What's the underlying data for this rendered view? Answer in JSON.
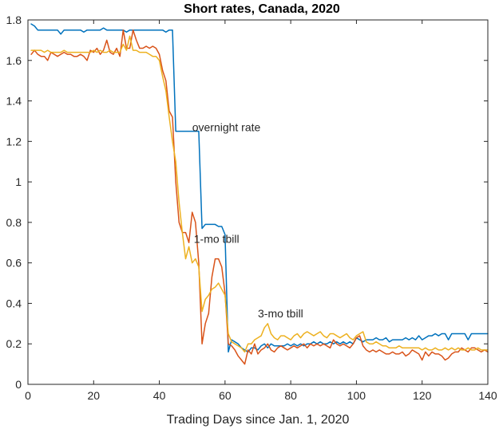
{
  "chart_data": {
    "type": "line",
    "title": "Short rates, Canada, 2020",
    "xlabel": "Trading Days since Jan. 1, 2020",
    "ylabel": "",
    "xlim": [
      0,
      140
    ],
    "ylim": [
      0,
      1.8
    ],
    "xticks": [
      0,
      20,
      40,
      60,
      80,
      100,
      120,
      140
    ],
    "xtick_labels": [
      "0",
      "20",
      "40",
      "60",
      "80",
      "100",
      "120",
      "140"
    ],
    "yticks": [
      0,
      0.2,
      0.4,
      0.6,
      0.8,
      1,
      1.2,
      1.4,
      1.6,
      1.8
    ],
    "ytick_labels": [
      "0",
      "0.2",
      "0.4",
      "0.6",
      "0.8",
      "1",
      "1.2",
      "1.4",
      "1.6",
      "1.8"
    ],
    "grid": false,
    "annotations": [
      {
        "text": "overnight rate",
        "x": 50,
        "y": 1.25
      },
      {
        "text": "1-mo tbill",
        "x": 50.5,
        "y": 0.7
      },
      {
        "text": "3-mo tbill",
        "x": 70,
        "y": 0.33
      }
    ],
    "series": [
      {
        "name": "overnight rate",
        "color": "#0072BD",
        "x": [
          1,
          2,
          3,
          4,
          5,
          6,
          7,
          8,
          9,
          10,
          11,
          12,
          13,
          14,
          15,
          16,
          17,
          18,
          19,
          20,
          21,
          22,
          23,
          24,
          25,
          26,
          27,
          28,
          29,
          30,
          31,
          32,
          33,
          34,
          35,
          36,
          37,
          38,
          39,
          40,
          41,
          42,
          43,
          44,
          45,
          46,
          47,
          48,
          49,
          50,
          51,
          52,
          53,
          54,
          55,
          56,
          57,
          58,
          59,
          60,
          61,
          62,
          63,
          64,
          65,
          66,
          67,
          68,
          69,
          70,
          71,
          72,
          73,
          74,
          75,
          76,
          77,
          78,
          79,
          80,
          81,
          82,
          83,
          84,
          85,
          86,
          87,
          88,
          89,
          90,
          91,
          92,
          93,
          94,
          95,
          96,
          97,
          98,
          99,
          100,
          101,
          102,
          103,
          104,
          105,
          106,
          107,
          108,
          109,
          110,
          111,
          112,
          113,
          114,
          115,
          116,
          117,
          118,
          119,
          120,
          121,
          122,
          123,
          124,
          125,
          126,
          127,
          128,
          129,
          130,
          131,
          132,
          133,
          134,
          135,
          136,
          137,
          138,
          139,
          140
        ],
        "values": [
          1.78,
          1.77,
          1.75,
          1.75,
          1.75,
          1.75,
          1.75,
          1.75,
          1.75,
          1.73,
          1.75,
          1.75,
          1.75,
          1.75,
          1.75,
          1.75,
          1.74,
          1.75,
          1.75,
          1.75,
          1.75,
          1.75,
          1.76,
          1.75,
          1.75,
          1.75,
          1.75,
          1.75,
          1.75,
          1.74,
          1.75,
          1.75,
          1.75,
          1.75,
          1.75,
          1.75,
          1.75,
          1.75,
          1.75,
          1.75,
          1.75,
          1.74,
          1.75,
          1.75,
          1.25,
          1.25,
          1.25,
          1.25,
          1.25,
          1.25,
          1.25,
          1.25,
          0.77,
          0.79,
          0.79,
          0.79,
          0.79,
          0.78,
          0.78,
          0.74,
          0.16,
          0.22,
          0.21,
          0.2,
          0.18,
          0.17,
          0.16,
          0.18,
          0.18,
          0.17,
          0.19,
          0.2,
          0.18,
          0.2,
          0.19,
          0.19,
          0.19,
          0.19,
          0.2,
          0.19,
          0.2,
          0.19,
          0.2,
          0.19,
          0.2,
          0.2,
          0.21,
          0.2,
          0.21,
          0.2,
          0.2,
          0.21,
          0.2,
          0.21,
          0.2,
          0.21,
          0.2,
          0.21,
          0.2,
          0.23,
          0.22,
          0.21,
          0.22,
          0.22,
          0.22,
          0.23,
          0.22,
          0.22,
          0.23,
          0.21,
          0.22,
          0.22,
          0.22,
          0.22,
          0.23,
          0.22,
          0.23,
          0.22,
          0.24,
          0.22,
          0.23,
          0.24,
          0.24,
          0.25,
          0.24,
          0.25,
          0.25,
          0.22,
          0.25,
          0.25,
          0.25,
          0.25,
          0.25,
          0.22,
          0.25,
          0.25,
          0.25,
          0.25,
          0.25,
          0.25
        ]
      },
      {
        "name": "1-mo tbill",
        "color": "#D95319",
        "x": [
          1,
          2,
          3,
          4,
          5,
          6,
          7,
          8,
          9,
          10,
          11,
          12,
          13,
          14,
          15,
          16,
          17,
          18,
          19,
          20,
          21,
          22,
          23,
          24,
          25,
          26,
          27,
          28,
          29,
          30,
          31,
          32,
          33,
          34,
          35,
          36,
          37,
          38,
          39,
          40,
          41,
          42,
          43,
          44,
          45,
          46,
          47,
          48,
          49,
          50,
          51,
          52,
          53,
          54,
          55,
          56,
          57,
          58,
          59,
          60,
          61,
          62,
          63,
          64,
          65,
          66,
          67,
          68,
          69,
          70,
          71,
          72,
          73,
          74,
          75,
          76,
          77,
          78,
          79,
          80,
          81,
          82,
          83,
          84,
          85,
          86,
          87,
          88,
          89,
          90,
          91,
          92,
          93,
          94,
          95,
          96,
          97,
          98,
          99,
          100,
          101,
          102,
          103,
          104,
          105,
          106,
          107,
          108,
          109,
          110,
          111,
          112,
          113,
          114,
          115,
          116,
          117,
          118,
          119,
          120,
          121,
          122,
          123,
          124,
          125,
          126,
          127,
          128,
          129,
          130,
          131,
          132,
          133,
          134,
          135,
          136,
          137,
          138,
          139,
          140
        ],
        "values": [
          1.63,
          1.65,
          1.63,
          1.62,
          1.62,
          1.6,
          1.64,
          1.63,
          1.62,
          1.63,
          1.64,
          1.63,
          1.63,
          1.62,
          1.62,
          1.63,
          1.62,
          1.6,
          1.65,
          1.64,
          1.66,
          1.63,
          1.65,
          1.7,
          1.64,
          1.63,
          1.66,
          1.62,
          1.75,
          1.66,
          1.66,
          1.75,
          1.7,
          1.66,
          1.66,
          1.67,
          1.66,
          1.67,
          1.66,
          1.63,
          1.55,
          1.5,
          1.35,
          1.32,
          1.0,
          0.8,
          0.75,
          0.75,
          0.7,
          0.85,
          0.8,
          0.6,
          0.2,
          0.3,
          0.35,
          0.53,
          0.62,
          0.62,
          0.58,
          0.45,
          0.2,
          0.19,
          0.17,
          0.14,
          0.12,
          0.1,
          0.17,
          0.15,
          0.2,
          0.15,
          0.17,
          0.18,
          0.2,
          0.17,
          0.16,
          0.18,
          0.19,
          0.18,
          0.17,
          0.18,
          0.19,
          0.18,
          0.19,
          0.2,
          0.18,
          0.2,
          0.19,
          0.2,
          0.19,
          0.2,
          0.19,
          0.18,
          0.22,
          0.2,
          0.19,
          0.2,
          0.19,
          0.18,
          0.2,
          0.23,
          0.24,
          0.19,
          0.17,
          0.16,
          0.17,
          0.16,
          0.17,
          0.16,
          0.15,
          0.15,
          0.16,
          0.15,
          0.15,
          0.16,
          0.14,
          0.15,
          0.17,
          0.16,
          0.15,
          0.12,
          0.16,
          0.14,
          0.16,
          0.15,
          0.15,
          0.14,
          0.12,
          0.13,
          0.15,
          0.16,
          0.16,
          0.18,
          0.17,
          0.16,
          0.18,
          0.18,
          0.17,
          0.16,
          0.17,
          0.16
        ]
      },
      {
        "name": "3-mo tbill",
        "color": "#EDB120",
        "x": [
          1,
          2,
          3,
          4,
          5,
          6,
          7,
          8,
          9,
          10,
          11,
          12,
          13,
          14,
          15,
          16,
          17,
          18,
          19,
          20,
          21,
          22,
          23,
          24,
          25,
          26,
          27,
          28,
          29,
          30,
          31,
          32,
          33,
          34,
          35,
          36,
          37,
          38,
          39,
          40,
          41,
          42,
          43,
          44,
          45,
          46,
          47,
          48,
          49,
          50,
          51,
          52,
          53,
          54,
          55,
          56,
          57,
          58,
          59,
          60,
          61,
          62,
          63,
          64,
          65,
          66,
          67,
          68,
          69,
          70,
          71,
          72,
          73,
          74,
          75,
          76,
          77,
          78,
          79,
          80,
          81,
          82,
          83,
          84,
          85,
          86,
          87,
          88,
          89,
          90,
          91,
          92,
          93,
          94,
          95,
          96,
          97,
          98,
          99,
          100,
          101,
          102,
          103,
          104,
          105,
          106,
          107,
          108,
          109,
          110,
          111,
          112,
          113,
          114,
          115,
          116,
          117,
          118,
          119,
          120,
          121,
          122,
          123,
          124,
          125,
          126,
          127,
          128,
          129,
          130,
          131,
          132,
          133,
          134,
          135,
          136,
          137,
          138,
          139,
          140
        ],
        "values": [
          1.65,
          1.65,
          1.65,
          1.65,
          1.64,
          1.65,
          1.64,
          1.64,
          1.64,
          1.64,
          1.65,
          1.64,
          1.64,
          1.64,
          1.64,
          1.64,
          1.64,
          1.64,
          1.64,
          1.65,
          1.64,
          1.65,
          1.64,
          1.64,
          1.65,
          1.64,
          1.64,
          1.64,
          1.68,
          1.65,
          1.72,
          1.65,
          1.65,
          1.64,
          1.64,
          1.64,
          1.63,
          1.62,
          1.62,
          1.6,
          1.52,
          1.45,
          1.32,
          1.2,
          1.1,
          0.9,
          0.75,
          0.62,
          0.68,
          0.6,
          0.62,
          0.58,
          0.36,
          0.42,
          0.44,
          0.47,
          0.48,
          0.5,
          0.47,
          0.44,
          0.25,
          0.21,
          0.2,
          0.19,
          0.18,
          0.16,
          0.2,
          0.2,
          0.22,
          0.23,
          0.24,
          0.28,
          0.3,
          0.25,
          0.23,
          0.22,
          0.24,
          0.24,
          0.23,
          0.22,
          0.24,
          0.25,
          0.23,
          0.25,
          0.26,
          0.25,
          0.24,
          0.25,
          0.26,
          0.24,
          0.23,
          0.25,
          0.25,
          0.24,
          0.23,
          0.24,
          0.25,
          0.23,
          0.22,
          0.24,
          0.25,
          0.26,
          0.21,
          0.2,
          0.2,
          0.21,
          0.2,
          0.19,
          0.19,
          0.18,
          0.18,
          0.18,
          0.19,
          0.18,
          0.18,
          0.18,
          0.18,
          0.18,
          0.18,
          0.17,
          0.18,
          0.17,
          0.17,
          0.18,
          0.17,
          0.17,
          0.18,
          0.17,
          0.18,
          0.17,
          0.18,
          0.17,
          0.17,
          0.18,
          0.17,
          0.17,
          0.18,
          0.17,
          0.17,
          0.17
        ]
      }
    ]
  }
}
